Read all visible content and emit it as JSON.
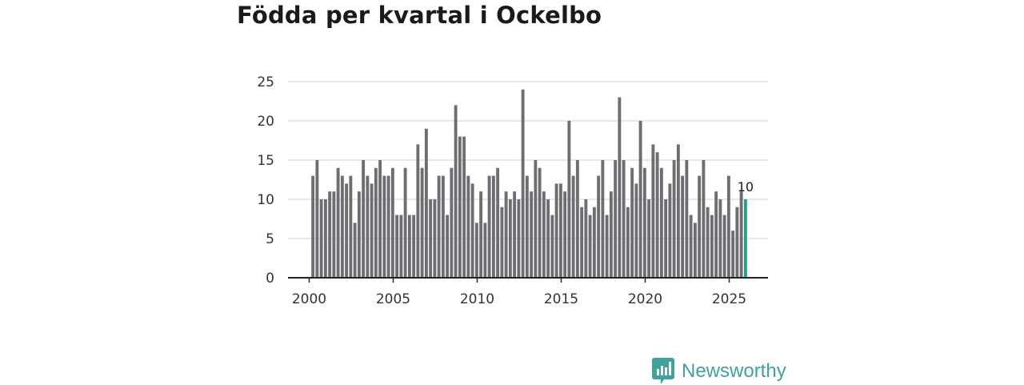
{
  "title": "Födda per kvartal i Ockelbo",
  "brand": {
    "name": "Newsworthy",
    "icon": "newsworthy-logo-icon"
  },
  "colors": {
    "bar": "#6e6d72",
    "highlight": "#2a9d8f",
    "grid": "#d9d9d9",
    "axis": "#222222",
    "brand": "#3fa39a"
  },
  "chart_data": {
    "type": "bar",
    "title": "Födda per kvartal i Ockelbo",
    "xlabel": "",
    "ylabel": "",
    "ylim": [
      0,
      25
    ],
    "yticks": [
      0,
      5,
      10,
      15,
      20,
      25
    ],
    "xlim": [
      2000,
      2026
    ],
    "xticks": [
      "2000",
      "2005",
      "2010",
      "2015",
      "2020",
      "2025"
    ],
    "grid": true,
    "start": "2000 Q1",
    "values": [
      13,
      15,
      10,
      10,
      11,
      11,
      14,
      13,
      12,
      13,
      7,
      11,
      15,
      13,
      12,
      14,
      15,
      13,
      13,
      14,
      8,
      8,
      14,
      8,
      8,
      17,
      14,
      19,
      10,
      10,
      13,
      13,
      8,
      14,
      22,
      18,
      18,
      13,
      12,
      7,
      11,
      7,
      13,
      13,
      14,
      9,
      11,
      10,
      11,
      10,
      24,
      13,
      11,
      15,
      14,
      11,
      10,
      8,
      12,
      12,
      11,
      20,
      13,
      15,
      9,
      10,
      8,
      9,
      13,
      15,
      8,
      11,
      15,
      23,
      15,
      9,
      14,
      12,
      20,
      14,
      10,
      17,
      16,
      14,
      10,
      12,
      15,
      17,
      13,
      15,
      8,
      7,
      13,
      15,
      9,
      8,
      11,
      10,
      8,
      13,
      6,
      9,
      11,
      10
    ],
    "highlight_last": true,
    "last_value_label": "10"
  }
}
